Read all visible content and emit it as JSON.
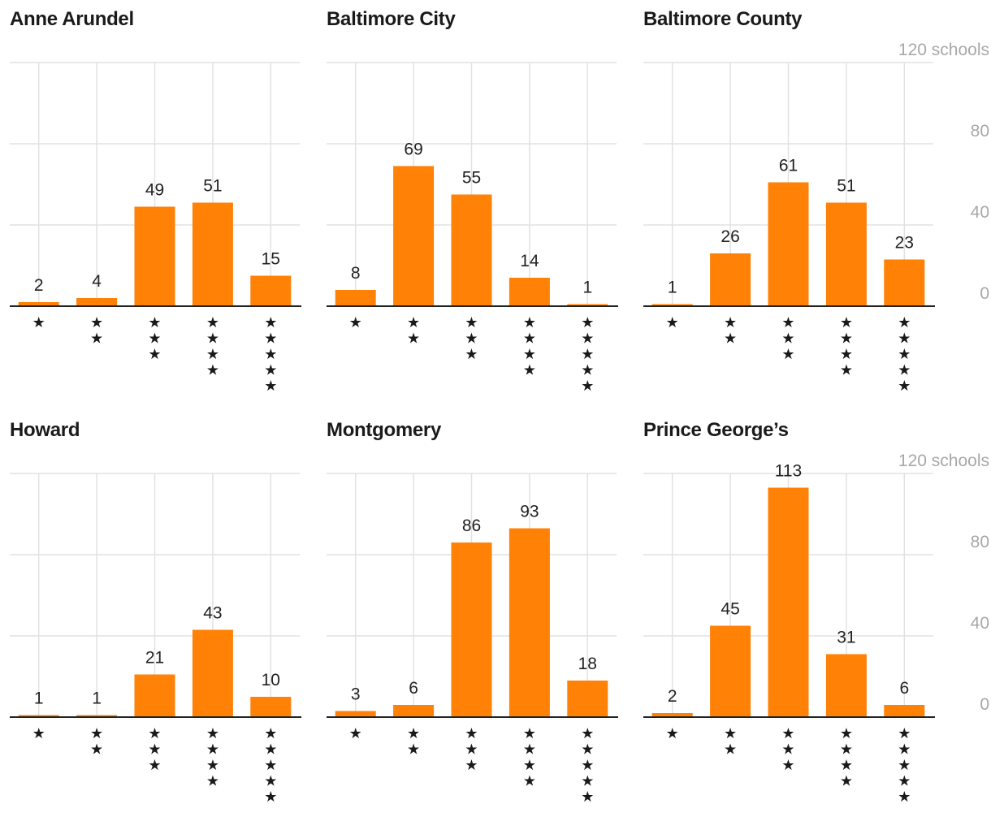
{
  "colors": {
    "bar": "#ff8106",
    "grid": "#e2e2e2",
    "axis": "#222222",
    "tick": "#a8a8a8",
    "text": "#222222"
  },
  "chart_data": [
    {
      "type": "bar",
      "title": "Anne Arundel",
      "categories": [
        "★",
        "★★",
        "★★★",
        "★★★★",
        "★★★★★"
      ],
      "values": [
        2,
        4,
        49,
        51,
        15
      ],
      "ylim": [
        0,
        120
      ],
      "yticks": [],
      "grid": true
    },
    {
      "type": "bar",
      "title": "Baltimore City",
      "categories": [
        "★",
        "★★",
        "★★★",
        "★★★★",
        "★★★★★"
      ],
      "values": [
        8,
        69,
        55,
        14,
        1
      ],
      "ylim": [
        0,
        120
      ],
      "yticks": [],
      "grid": true
    },
    {
      "type": "bar",
      "title": "Baltimore County",
      "categories": [
        "★",
        "★★",
        "★★★",
        "★★★★",
        "★★★★★"
      ],
      "values": [
        1,
        26,
        61,
        51,
        23
      ],
      "ylim": [
        0,
        120
      ],
      "yticks": [
        "0",
        "40",
        "80",
        "120 schools"
      ],
      "ytick_values": [
        0,
        40,
        80,
        120
      ],
      "grid": true
    },
    {
      "type": "bar",
      "title": "Howard",
      "categories": [
        "★",
        "★★",
        "★★★",
        "★★★★",
        "★★★★★"
      ],
      "values": [
        1,
        1,
        21,
        43,
        10
      ],
      "ylim": [
        0,
        120
      ],
      "yticks": [],
      "grid": true
    },
    {
      "type": "bar",
      "title": "Montgomery",
      "categories": [
        "★",
        "★★",
        "★★★",
        "★★★★",
        "★★★★★"
      ],
      "values": [
        3,
        6,
        86,
        93,
        18
      ],
      "ylim": [
        0,
        120
      ],
      "yticks": [],
      "grid": true
    },
    {
      "type": "bar",
      "title": "Prince George’s",
      "categories": [
        "★",
        "★★",
        "★★★",
        "★★★★",
        "★★★★★"
      ],
      "values": [
        2,
        45,
        113,
        31,
        6
      ],
      "ylim": [
        0,
        120
      ],
      "yticks": [
        "0",
        "40",
        "80",
        "120 schools"
      ],
      "ytick_values": [
        0,
        40,
        80,
        120
      ],
      "grid": true
    }
  ]
}
